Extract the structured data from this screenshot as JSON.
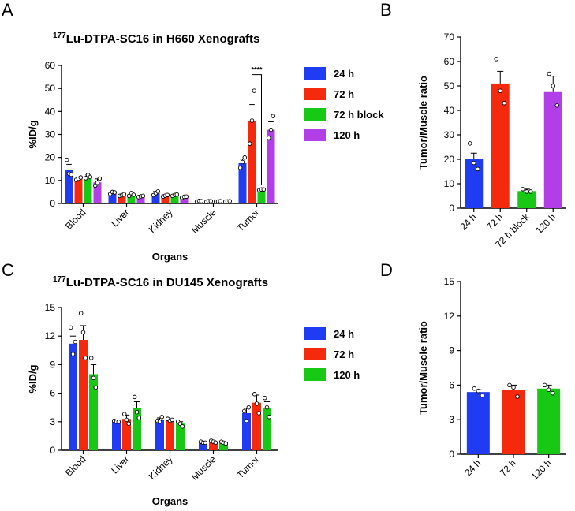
{
  "panel_labels": {
    "a": "A",
    "b": "B",
    "c": "C",
    "d": "D"
  },
  "chart_data": [
    {
      "id": "A",
      "type": "bar",
      "title_sup": "177",
      "title": "Lu-DTPA-SC16 in H660 Xenografts",
      "xlabel": "Organs",
      "ylabel": "%ID/g",
      "ylim": [
        0,
        60
      ],
      "yticks": [
        0,
        10,
        20,
        30,
        40,
        50,
        60
      ],
      "categories": [
        "Blood",
        "Liver",
        "Kidney",
        "Muscle",
        "Tumor"
      ],
      "series": [
        {
          "name": "24 h",
          "color": "#1f3cf2",
          "values": [
            14.5,
            4.6,
            4.4,
            1.0,
            17.5
          ],
          "errors": [
            2.5,
            0.6,
            0.8,
            0.2,
            1.8
          ],
          "points": [
            [
              19,
              13,
              12.5
            ],
            [
              4.1,
              5,
              4.8
            ],
            [
              3.6,
              4.5,
              5.2
            ],
            [
              0.8,
              1.1,
              1.0
            ],
            [
              15.5,
              18,
              20
            ]
          ]
        },
        {
          "name": "72 h",
          "color": "#f52a0c",
          "values": [
            10.7,
            3.6,
            3.3,
            0.9,
            36.0
          ],
          "errors": [
            0.7,
            0.4,
            0.5,
            0.2,
            7.0
          ],
          "points": [
            [
              10.3,
              10.8,
              11.3
            ],
            [
              3.3,
              3.6,
              4.0
            ],
            [
              3.0,
              3.4,
              3.7
            ],
            [
              0.7,
              1.0,
              1.0
            ],
            [
              26,
              36,
              49
            ]
          ]
        },
        {
          "name": "72 h block",
          "color": "#17c915",
          "values": [
            11.6,
            3.9,
            3.6,
            0.9,
            6.0
          ],
          "errors": [
            0.8,
            0.6,
            0.3,
            0.1,
            0.3
          ],
          "points": [
            [
              11,
              12.4,
              11.5
            ],
            [
              3.3,
              4.5,
              3.8
            ],
            [
              3.3,
              3.7,
              3.9
            ],
            [
              0.8,
              0.9,
              1.0
            ],
            [
              5.8,
              6.1,
              6.1
            ]
          ]
        },
        {
          "name": "120 h",
          "color": "#b23ee8",
          "values": [
            9.2,
            3.1,
            2.8,
            0.9,
            32.0
          ],
          "errors": [
            1.5,
            0.3,
            0.3,
            0.1,
            3.5
          ],
          "points": [
            [
              7.8,
              9.0,
              10.8
            ],
            [
              2.8,
              3.1,
              3.3
            ],
            [
              2.5,
              2.9,
              3.0
            ],
            [
              0.8,
              0.9,
              1.0
            ],
            [
              28.5,
              32,
              38
            ]
          ]
        }
      ],
      "annotation": {
        "text": "****",
        "from_series": "72 h",
        "to_series": "72 h block",
        "category": "Tumor"
      },
      "legend": "right"
    },
    {
      "id": "B",
      "type": "bar",
      "title": "",
      "xlabel": "",
      "ylabel": "Tumor/Muscle ratio",
      "ylim": [
        0,
        70
      ],
      "yticks": [
        0,
        10,
        20,
        30,
        40,
        50,
        60,
        70
      ],
      "categories": [
        "24 h",
        "72 h",
        "72 h block",
        "120 h"
      ],
      "colors": [
        "#1f3cf2",
        "#f52a0c",
        "#17c915",
        "#b23ee8"
      ],
      "values": [
        20.0,
        51.0,
        7.0,
        47.5
      ],
      "errors": [
        2.5,
        5.0,
        0.8,
        6.5
      ],
      "points": [
        [
          26.5,
          18.5,
          16
        ],
        [
          61,
          48,
          43
        ],
        [
          7.8,
          6.8,
          6.8
        ],
        [
          55,
          50,
          42
        ]
      ]
    },
    {
      "id": "C",
      "type": "bar",
      "title_sup": "177",
      "title": "Lu-DTPA-SC16 in DU145 Xenografts",
      "xlabel": "Organs",
      "ylabel": "%ID/g",
      "ylim": [
        0,
        15
      ],
      "yticks": [
        0,
        3,
        6,
        9,
        12,
        15
      ],
      "categories": [
        "Blood",
        "Liver",
        "Kidney",
        "Muscle",
        "Tumor"
      ],
      "series": [
        {
          "name": "24 h",
          "color": "#1f3cf2",
          "values": [
            11.2,
            3.0,
            3.2,
            0.8,
            3.9
          ],
          "errors": [
            0.8,
            0.1,
            0.2,
            0.1,
            0.5
          ],
          "points": [
            [
              12.9,
              10.1,
              11.4
            ],
            [
              3.1,
              3.0,
              3.0
            ],
            [
              3.1,
              3.0,
              3.5
            ],
            [
              0.9,
              0.8,
              0.8
            ],
            [
              4.1,
              3.1,
              4.5
            ]
          ]
        },
        {
          "name": "72 h",
          "color": "#f52a0c",
          "values": [
            11.6,
            3.3,
            3.2,
            0.9,
            5.0
          ],
          "errors": [
            1.5,
            0.4,
            0.1,
            0.1,
            0.8
          ],
          "points": [
            [
              14.4,
              12.4,
              9.7
            ],
            [
              3.8,
              3.2,
              2.8
            ],
            [
              3.3,
              3.1,
              3.2
            ],
            [
              1.0,
              0.9,
              0.8
            ],
            [
              5.9,
              4.9,
              3.9
            ]
          ]
        },
        {
          "name": "120 h",
          "color": "#17c915",
          "values": [
            8.0,
            4.4,
            2.8,
            0.8,
            4.4
          ],
          "errors": [
            1.0,
            0.7,
            0.2,
            0.1,
            0.7
          ],
          "points": [
            [
              9.7,
              7.6,
              6.6
            ],
            [
              5.6,
              4.0,
              3.4
            ],
            [
              3.0,
              2.8,
              2.5
            ],
            [
              0.9,
              0.8,
              0.7
            ],
            [
              5.5,
              4.5,
              3.5
            ]
          ]
        }
      ],
      "legend": "right"
    },
    {
      "id": "D",
      "type": "bar",
      "title": "",
      "xlabel": "",
      "ylabel": "Tumor/Muscle ratio",
      "ylim": [
        0,
        15
      ],
      "yticks": [
        0,
        3,
        6,
        9,
        12,
        15
      ],
      "categories": [
        "24 h",
        "72 h",
        "120 h"
      ],
      "colors": [
        "#1f3cf2",
        "#f52a0c",
        "#17c915"
      ],
      "values": [
        5.4,
        5.6,
        5.7
      ],
      "errors": [
        0.2,
        0.4,
        0.3
      ],
      "points": [
        [
          5.7,
          5.5,
          5.1
        ],
        [
          6.0,
          5.8,
          5.0
        ],
        [
          6.0,
          5.6,
          5.3
        ]
      ]
    }
  ]
}
